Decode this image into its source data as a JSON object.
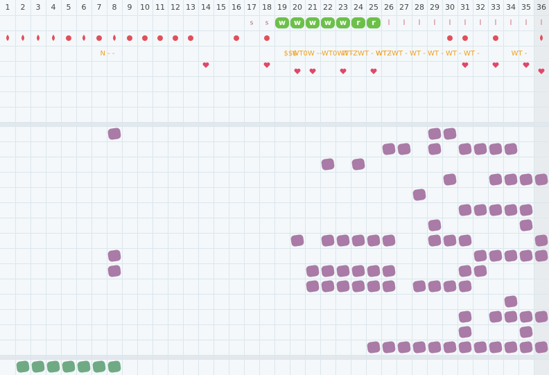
{
  "header": {
    "columns": [
      "1",
      "2",
      "3",
      "4",
      "5",
      "6",
      "7",
      "8",
      "9",
      "10",
      "11",
      "12",
      "13",
      "14",
      "15",
      "16",
      "17",
      "18",
      "19",
      "20",
      "21",
      "22",
      "23",
      "24",
      "25",
      "26",
      "27",
      "28",
      "29",
      "30",
      "31",
      "32",
      "33",
      "34",
      "35",
      "36"
    ]
  },
  "status_row": [
    null,
    null,
    null,
    null,
    null,
    null,
    null,
    null,
    null,
    null,
    null,
    null,
    null,
    null,
    null,
    null,
    "s",
    "s",
    "w",
    "w",
    "w",
    "w",
    "w",
    "r",
    "r",
    "I",
    "I",
    "I",
    "I",
    "I",
    "I",
    "I",
    "I",
    "I",
    "I",
    "I"
  ],
  "note_row": [
    null,
    null,
    null,
    null,
    null,
    null,
    null,
    "N - -",
    null,
    null,
    null,
    null,
    null,
    null,
    null,
    null,
    null,
    null,
    null,
    "$$$",
    "WT0W -",
    null,
    "-WT0WT -",
    null,
    "WTZWT - WT -",
    null,
    null,
    null,
    "WTZWT - WT - WT - WT - WT -",
    null,
    null,
    null,
    null,
    null,
    "WT -",
    null
  ]
}
